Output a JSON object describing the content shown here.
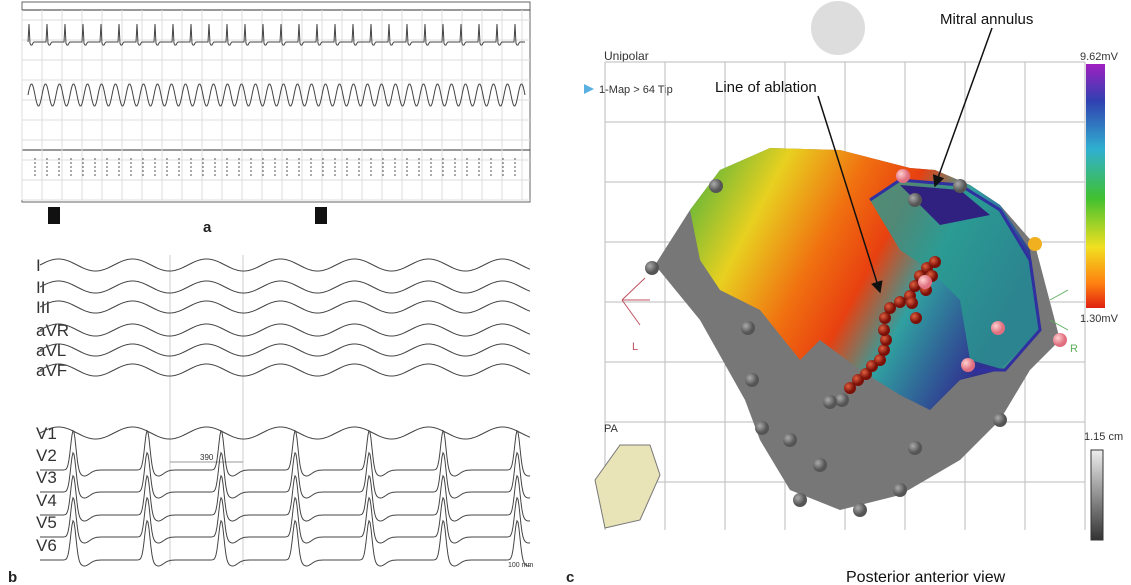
{
  "panel_a": {
    "label": "a"
  },
  "panel_b": {
    "label": "b",
    "leads": [
      "I",
      "II",
      "III",
      "aVR",
      "aVL",
      "aVF",
      "V1",
      "V2",
      "V3",
      "V4",
      "V5",
      "V6"
    ],
    "interval": "390",
    "scale": "100 mm"
  },
  "panel_c": {
    "label": "c",
    "mode": "Unipolar",
    "map": "1-Map > 64 Tip",
    "annotations": [
      "Line of ablation",
      "Mitral annulus"
    ],
    "scale_max": "9.62mV",
    "scale_min": "1.30mV",
    "distance": "1.15 cm",
    "view": "PA",
    "left": "L",
    "right": "R",
    "caption": "Posterior anterior view"
  }
}
